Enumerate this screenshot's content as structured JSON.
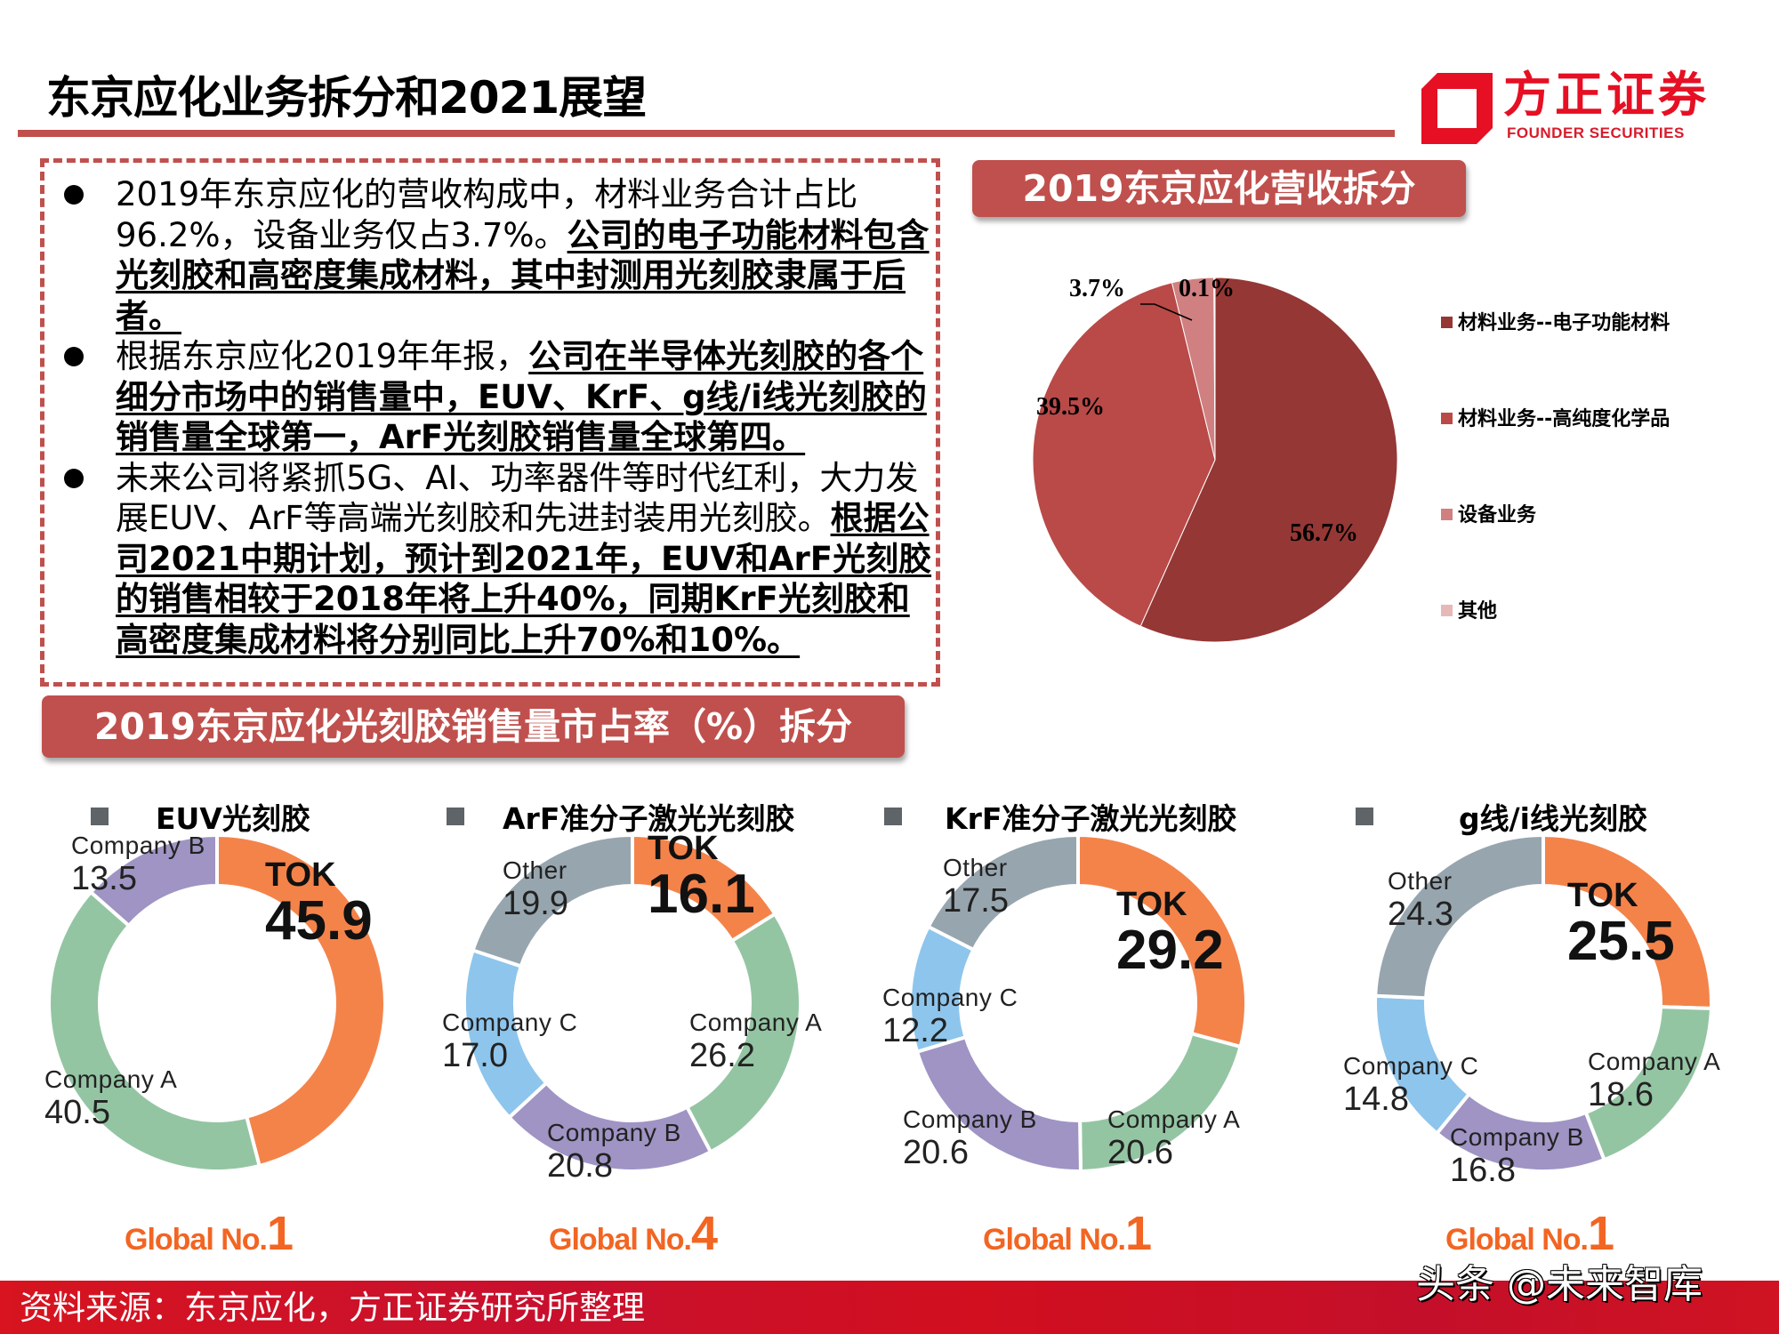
{
  "header": {
    "title": "东京应化业务拆分和2021展望",
    "logo_cn": "方正证券",
    "logo_en": "FOUNDER SECURITIES"
  },
  "bullets": [
    {
      "normal": "2019年东京应化的营收构成中，材料业务合计占比96.2%，设备业务仅占3.7%。",
      "highlight": "公司的电子功能材料包含光刻胶和高密度集成材料，其中封测用光刻胶隶属于后者。"
    },
    {
      "normal": "根据东京应化2019年年报，",
      "highlight": "公司在半导体光刻胶的各个细分市场中的销售量中，EUV、KrF、g线/i线光刻胶的销售量全球第一，ArF光刻胶销售量全球第四。"
    },
    {
      "normal": "未来公司将紧抓5G、AI、功率器件等时代红利，大力发展EUV、ArF等高端光刻胶和先进封装用光刻胶。",
      "highlight": "根据公司2021中期计划，预计到2021年，EUV和ArF光刻胶的销售相较于2018年将上升40%，同期KrF光刻胶和高密度集成材料将分别同比上升70%和10%。"
    }
  ],
  "revenue_section": {
    "title": "2019东京应化营收拆分"
  },
  "share_section": {
    "title": "2019东京应化光刻胶销售量市占率（%）拆分"
  },
  "footer": {
    "source": "资料来源：东京应化，方正证券研究所整理",
    "watermark": "头条 @未来智库"
  },
  "chart_data": [
    {
      "type": "pie",
      "title": "2019东京应化营收拆分",
      "categories": [
        "材料业务--电子功能材料",
        "材料业务--高纯度化学品",
        "设备业务",
        "其他"
      ],
      "values": [
        56.7,
        39.5,
        3.7,
        0.1
      ],
      "labels": [
        "56.7%",
        "39.5%",
        "3.7%",
        "0.1%"
      ],
      "colors": [
        "#953735",
        "#b94a48",
        "#d08080",
        "#e6b9b8"
      ],
      "legend_position": "right",
      "start_angle": "12 o'clock, clockwise"
    },
    {
      "type": "pie",
      "subtype": "donut",
      "title": "EUV光刻胶",
      "categories": [
        "TOK",
        "Company A",
        "Company B"
      ],
      "values": [
        45.9,
        40.5,
        13.5
      ],
      "labels": [
        "45.9",
        "40.5",
        "13.5"
      ],
      "colors": [
        "#f4834a",
        "#94c5a3",
        "#9f94c4"
      ],
      "rank_text": "Global No.",
      "rank": "1"
    },
    {
      "type": "pie",
      "subtype": "donut",
      "title": "ArF准分子激光光刻胶",
      "categories": [
        "TOK",
        "Company A",
        "Company B",
        "Company C",
        "Other"
      ],
      "values": [
        16.1,
        26.2,
        20.8,
        17.0,
        19.9
      ],
      "labels": [
        "16.1",
        "26.2",
        "20.8",
        "17.0",
        "19.9"
      ],
      "colors": [
        "#f4834a",
        "#94c5a3",
        "#9f94c4",
        "#8ec5ec",
        "#97a5ae"
      ],
      "rank_text": "Global No.",
      "rank": "4"
    },
    {
      "type": "pie",
      "subtype": "donut",
      "title": "KrF准分子激光光刻胶",
      "categories": [
        "TOK",
        "Company A",
        "Company B",
        "Company C",
        "Other"
      ],
      "values": [
        29.2,
        20.6,
        20.6,
        12.2,
        17.5
      ],
      "labels": [
        "29.2",
        "20.6",
        "20.6",
        "12.2",
        "17.5"
      ],
      "colors": [
        "#f4834a",
        "#94c5a3",
        "#9f94c4",
        "#8ec5ec",
        "#97a5ae"
      ],
      "rank_text": "Global No.",
      "rank": "1"
    },
    {
      "type": "pie",
      "subtype": "donut",
      "title": "g线/i线光刻胶",
      "categories": [
        "TOK",
        "Company A",
        "Company B",
        "Company C",
        "Other"
      ],
      "values": [
        25.5,
        18.6,
        16.8,
        14.8,
        24.3
      ],
      "labels": [
        "25.5",
        "18.6",
        "16.8",
        "14.8",
        "24.3"
      ],
      "colors": [
        "#f4834a",
        "#94c5a3",
        "#9f94c4",
        "#8ec5ec",
        "#97a5ae"
      ],
      "rank_text": "Global No.",
      "rank": "1"
    }
  ]
}
